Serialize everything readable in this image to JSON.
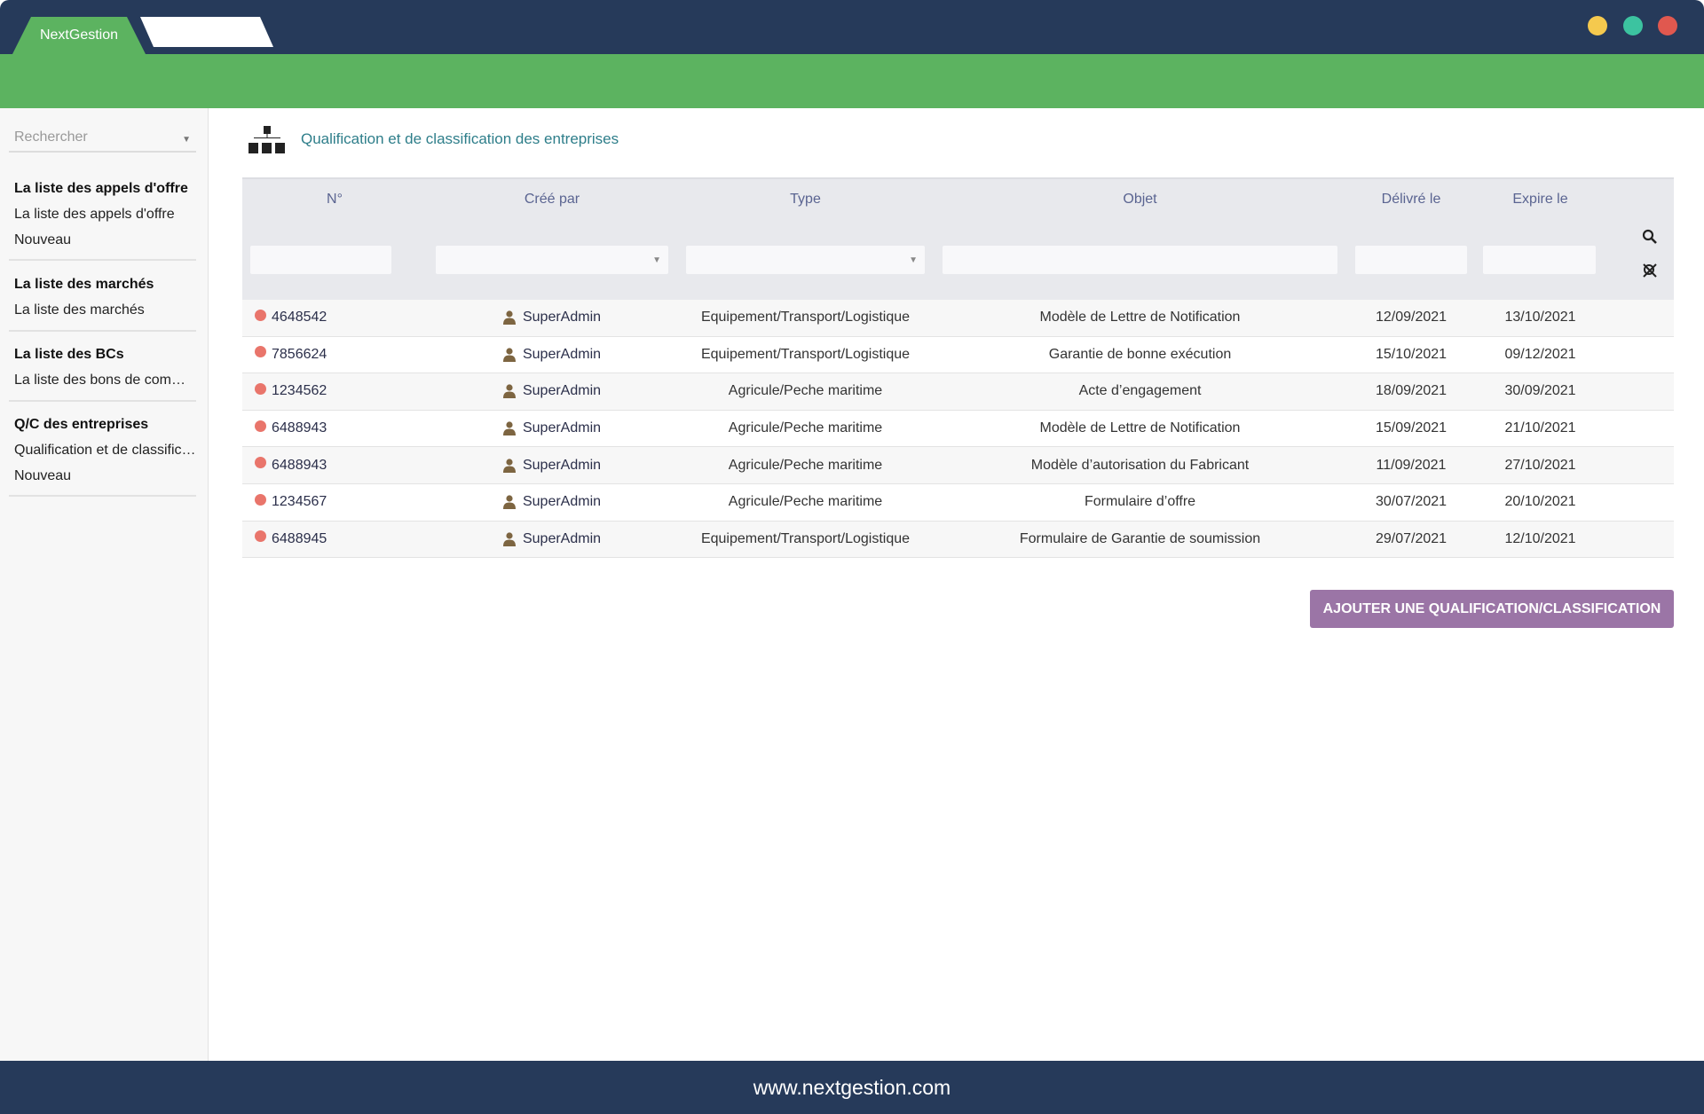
{
  "app": {
    "tab_label": "NextGestion",
    "window_controls": {
      "minimize": "#f5c94e",
      "maximize": "#3cc3a0",
      "close": "#e0584f"
    }
  },
  "sidebar": {
    "search_placeholder": "Rechercher",
    "groups": [
      {
        "heading": "La liste des appels d'offre",
        "items": [
          "La liste des appels d'offre",
          "Nouveau"
        ]
      },
      {
        "heading": "La liste des marchés",
        "items": [
          "La liste des marchés"
        ]
      },
      {
        "heading": "La liste des BCs",
        "items": [
          "La liste des bons de commande"
        ]
      },
      {
        "heading": "Q/C des entreprises",
        "items": [
          "Qualification et de classification des entreprises",
          "Nouveau"
        ]
      }
    ]
  },
  "page": {
    "title": "Qualification et de classification des entreprises",
    "icon": "sitemap-icon"
  },
  "table": {
    "columns": [
      "N°",
      "Créé par",
      "Type",
      "Objet",
      "Délivré le",
      "Expire le"
    ],
    "rows": [
      {
        "num": "4648542",
        "by": "SuperAdmin",
        "type": "Equipement/Transport/Logistique",
        "objet": "Modèle de Lettre de Notification",
        "delivre": "12/09/2021",
        "expire": "13/10/2021"
      },
      {
        "num": "7856624",
        "by": "SuperAdmin",
        "type": "Equipement/Transport/Logistique",
        "objet": "Garantie de bonne exécution",
        "delivre": "15/10/2021",
        "expire": "09/12/2021"
      },
      {
        "num": "1234562",
        "by": "SuperAdmin",
        "type": "Agricule/Peche maritime",
        "objet": "Acte d’engagement",
        "delivre": "18/09/2021",
        "expire": "30/09/2021"
      },
      {
        "num": "6488943",
        "by": "SuperAdmin",
        "type": "Agricule/Peche maritime",
        "objet": "Modèle de Lettre de Notification",
        "delivre": "15/09/2021",
        "expire": "21/10/2021"
      },
      {
        "num": "6488943",
        "by": "SuperAdmin",
        "type": "Agricule/Peche maritime",
        "objet": "Modèle d’autorisation du Fabricant",
        "delivre": "11/09/2021",
        "expire": "27/10/2021"
      },
      {
        "num": "1234567",
        "by": "SuperAdmin",
        "type": "Agricule/Peche maritime",
        "objet": "Formulaire d’offre",
        "delivre": "30/07/2021",
        "expire": "20/10/2021"
      },
      {
        "num": "6488945",
        "by": "SuperAdmin",
        "type": "Equipement/Transport/Logistique",
        "objet": "Formulaire de Garantie de soumission",
        "delivre": "29/07/2021",
        "expire": "12/10/2021"
      }
    ]
  },
  "add_button": "AJOUTER UNE QUALIFICATION/CLASSIFICATION",
  "footer": "www.nextgestion.com"
}
